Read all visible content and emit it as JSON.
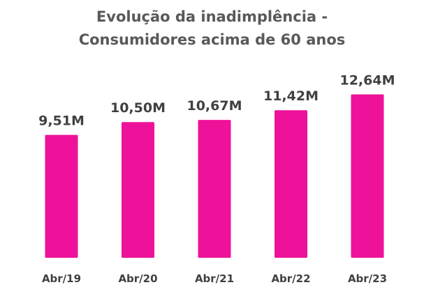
{
  "chart_data": {
    "type": "bar",
    "title_lines": [
      "Evolução da inadimplência -",
      "Consumidores acima de 60 anos"
    ],
    "categories": [
      "Abr/19",
      "Abr/20",
      "Abr/21",
      "Abr/22",
      "Abr/23"
    ],
    "values": [
      9.51,
      10.5,
      10.67,
      11.42,
      12.64
    ],
    "data_labels": [
      "9,51M",
      "10,50M",
      "10,67M",
      "11,42M",
      "12,64M"
    ],
    "unit": "M",
    "xlabel": "",
    "ylabel": "",
    "grid": false,
    "legend": "none",
    "colors": {
      "bar": "#EE1199",
      "title": "#595959",
      "labels": "#404040"
    }
  }
}
